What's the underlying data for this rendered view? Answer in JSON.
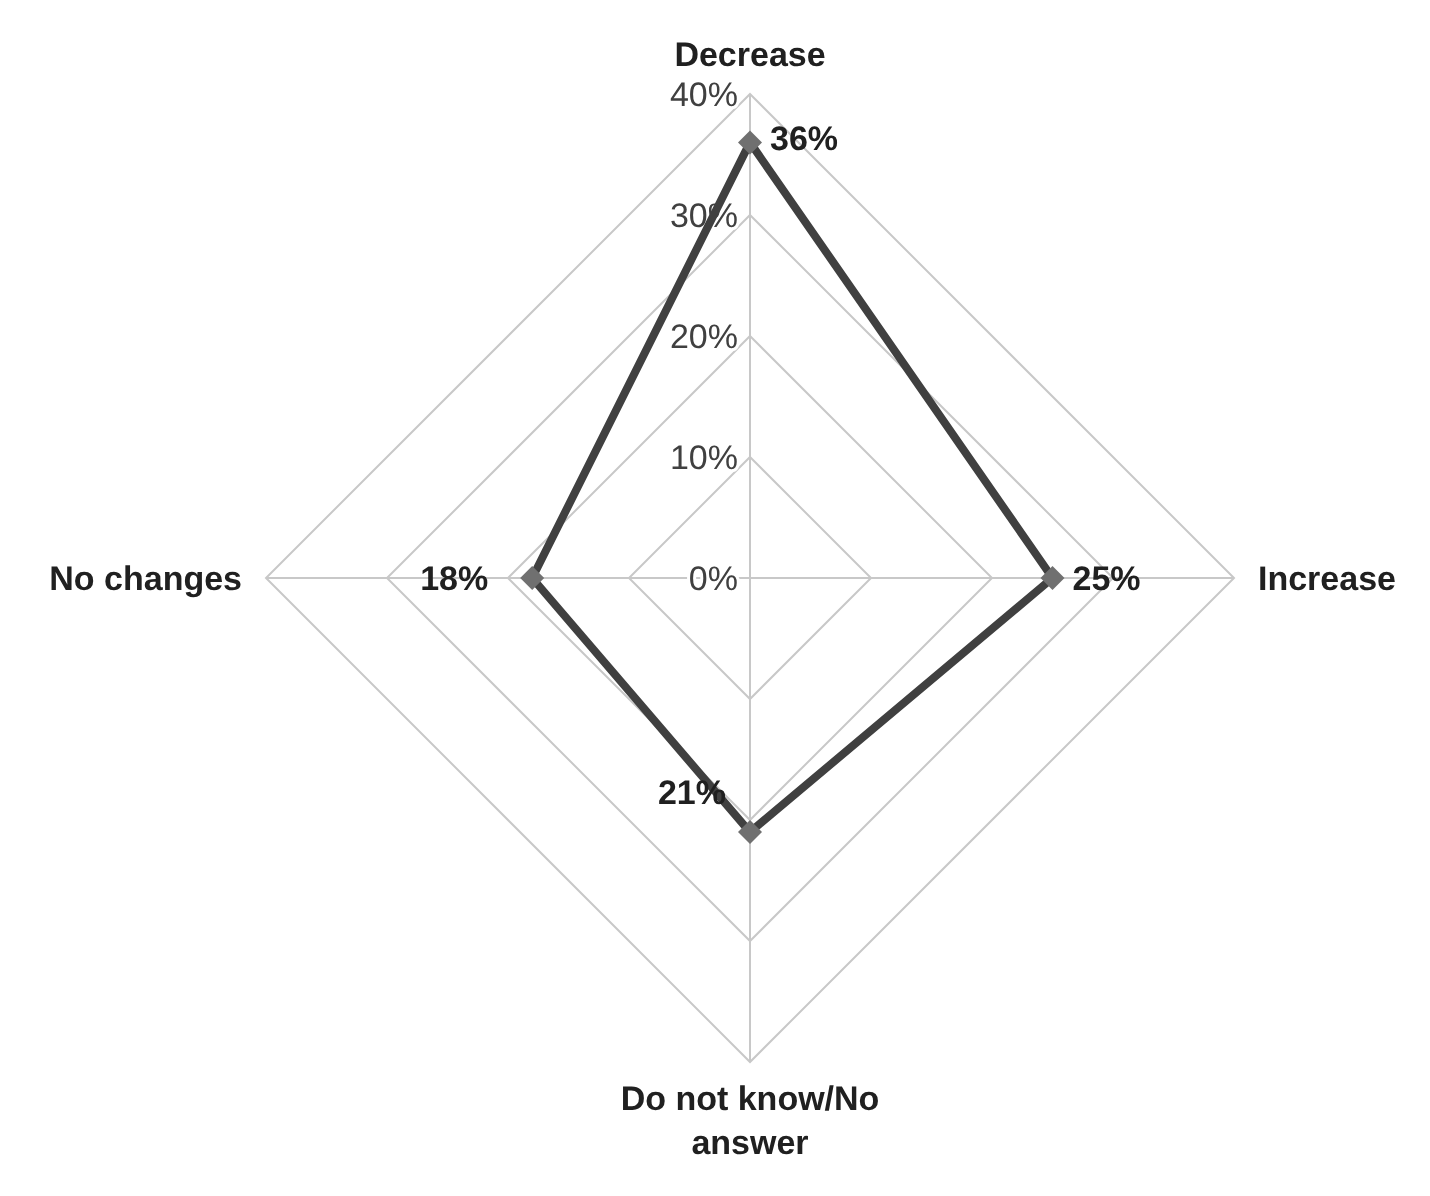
{
  "chart_data": {
    "type": "radar",
    "categories": [
      "Decrease",
      "Increase",
      "Do not know/No answer",
      "No changes"
    ],
    "series": [
      {
        "color": "#404040",
        "values": [
          36,
          25,
          21,
          18
        ],
        "value_labels": [
          "36%",
          "25%",
          "21%",
          "18%"
        ]
      }
    ],
    "ylim": [
      0,
      40
    ],
    "yticks": [
      {
        "value": 0,
        "label": "0%"
      },
      {
        "value": 10,
        "label": "10%"
      },
      {
        "value": 20,
        "label": "20%"
      },
      {
        "value": 30,
        "label": "30%"
      },
      {
        "value": 40,
        "label": "40%"
      }
    ],
    "grid": true,
    "marker": "diamond",
    "line_style": "solid"
  }
}
